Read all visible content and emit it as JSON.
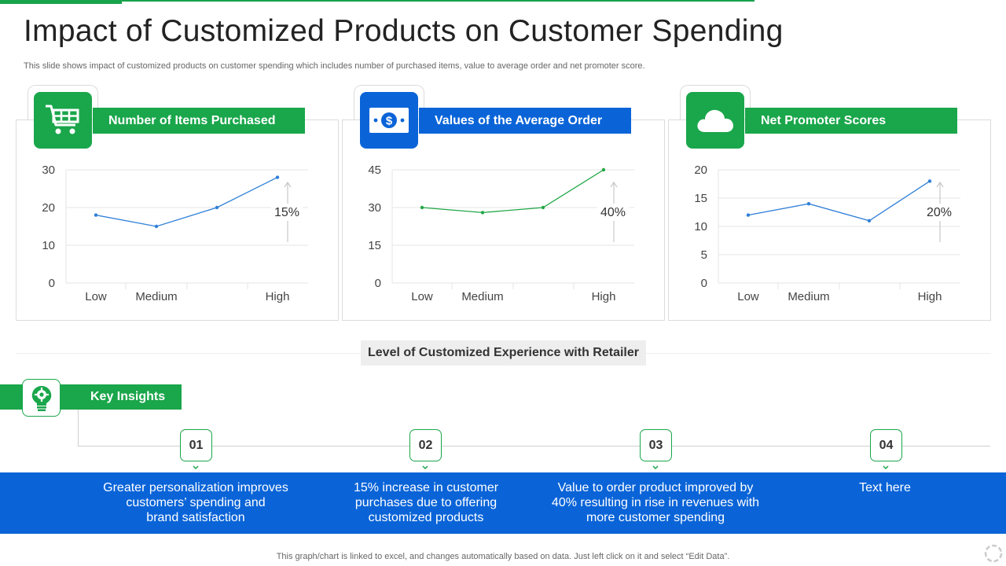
{
  "title": "Impact of Customized Products on Customer Spending",
  "subtitle": "This slide shows impact of customized products on customer spending which includes number of purchased items, value to average order and net promoter score.",
  "x_axis_caption": "Level of Customized Experience with Retailer",
  "key_insights": {
    "label": "Key Insights",
    "items": [
      {
        "number": "01",
        "text": "Greater personalization improves\ncustomers’ spending and\nbrand satisfaction"
      },
      {
        "number": "02",
        "text": "15% increase in customer\npurchases due to offering\ncustomized products"
      },
      {
        "number": "03",
        "text": "Value to order product improved by\n40% resulting in rise in revenues with\nmore customer spending"
      },
      {
        "number": "04",
        "text": "Text here"
      }
    ]
  },
  "footer_note": "This graph/chart is linked to excel,  and changes automatically based on data. Just left click on it and select “Edit Data”.",
  "colors": {
    "green": "#1aa64b",
    "blue": "#0a64d8"
  },
  "chart_data": [
    {
      "type": "line",
      "title": "Number of Items Purchased",
      "icon": "shopping-cart-icon",
      "x": [
        "Low",
        "Medium",
        "",
        "High"
      ],
      "tick_labels_y": [
        "30",
        "20",
        "10",
        "0"
      ],
      "ylim": [
        0,
        30
      ],
      "series": [
        {
          "values": [
            18,
            15,
            20,
            28
          ],
          "color": "#2f7fd8"
        }
      ],
      "annotation": "15%",
      "grid": true
    },
    {
      "type": "line",
      "title": "Values of the Average Order",
      "icon": "money-bill-icon",
      "x": [
        "Low",
        "Medium",
        "",
        "High"
      ],
      "tick_labels_y": [
        "45",
        "30",
        "15",
        "0"
      ],
      "ylim": [
        0,
        45
      ],
      "series": [
        {
          "values": [
            30,
            28,
            30,
            45
          ],
          "color": "#22a745"
        }
      ],
      "annotation": "40%",
      "grid": true
    },
    {
      "type": "line",
      "title": "Net Promoter Scores",
      "icon": "cloud-icon",
      "x": [
        "Low",
        "Medium",
        "",
        "High"
      ],
      "tick_labels_y": [
        "20",
        "15",
        "10",
        "5",
        "0"
      ],
      "ylim": [
        0,
        20
      ],
      "series": [
        {
          "values": [
            12,
            14,
            11,
            18
          ],
          "color": "#2f7fd8"
        }
      ],
      "annotation": "20%",
      "grid": true
    }
  ]
}
